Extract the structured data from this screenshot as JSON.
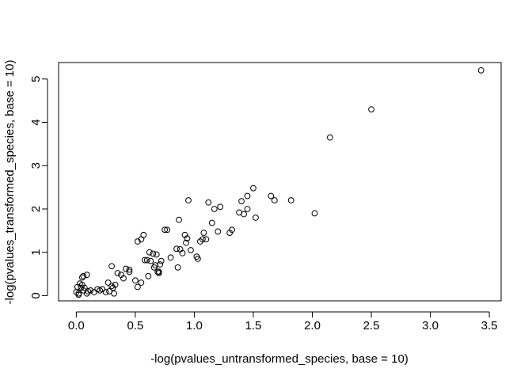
{
  "chart_data": {
    "type": "scatter",
    "title": "",
    "xlabel": "-log(pvalues_untransformed_species, base = 10)",
    "ylabel": "-log(pvalues_transformed_species, base = 10)",
    "xlim": [
      -0.15,
      3.6
    ],
    "ylim": [
      -0.12,
      5.38
    ],
    "xticks": [
      "0.0",
      "0.5",
      "1.0",
      "1.5",
      "2.0",
      "2.5",
      "3.0",
      "3.5"
    ],
    "yticks": [
      "0",
      "1",
      "2",
      "3",
      "4",
      "5"
    ],
    "grid": false,
    "legend": "none",
    "marker": "open-circle",
    "series": [
      {
        "x": [
          0.0,
          0.02,
          0.03,
          0.01,
          0.04,
          0.05,
          0.07,
          0.02,
          0.06,
          0.09,
          0.1,
          0.12,
          0.15,
          0.18,
          0.05,
          0.06,
          0.09,
          0.2,
          0.22,
          0.25,
          0.27,
          0.3,
          0.28,
          0.31,
          0.33,
          0.35,
          0.32,
          0.3,
          0.38,
          0.4,
          0.42,
          0.45,
          0.45,
          0.5,
          0.52,
          0.55,
          0.52,
          0.55,
          0.57,
          0.58,
          0.6,
          0.61,
          0.63,
          0.65,
          0.67,
          0.68,
          0.69,
          0.7,
          0.7,
          0.71,
          0.72,
          0.75,
          0.77,
          0.8,
          0.62,
          0.66,
          0.85,
          0.86,
          0.87,
          0.88,
          0.9,
          0.92,
          0.93,
          0.94,
          0.95,
          0.97,
          1.02,
          1.03,
          1.05,
          1.07,
          1.08,
          1.1,
          1.12,
          1.15,
          1.17,
          1.2,
          1.22,
          1.3,
          1.32,
          1.38,
          1.4,
          1.42,
          1.45,
          1.45,
          1.5,
          1.52,
          1.65,
          1.68,
          1.82,
          2.02,
          2.15,
          2.5,
          3.43
        ],
        "y": [
          0.08,
          0.05,
          0.28,
          0.2,
          0.18,
          0.25,
          0.18,
          0.02,
          0.45,
          0.48,
          0.1,
          0.12,
          0.08,
          0.15,
          0.42,
          0.12,
          0.05,
          0.12,
          0.15,
          0.08,
          0.3,
          0.22,
          0.1,
          0.18,
          0.25,
          0.52,
          0.05,
          0.68,
          0.48,
          0.4,
          0.62,
          0.6,
          0.55,
          0.35,
          0.2,
          0.3,
          1.25,
          1.3,
          1.4,
          0.82,
          0.82,
          0.45,
          0.8,
          0.97,
          0.7,
          0.95,
          0.55,
          0.52,
          0.55,
          0.72,
          0.8,
          1.52,
          1.52,
          0.88,
          1.0,
          0.65,
          1.08,
          0.65,
          1.75,
          1.07,
          0.98,
          1.4,
          1.22,
          1.32,
          2.2,
          1.05,
          0.9,
          0.85,
          1.25,
          1.3,
          1.45,
          1.3,
          2.15,
          1.68,
          2.0,
          1.48,
          2.05,
          1.45,
          1.52,
          1.92,
          2.18,
          1.88,
          2.3,
          2.0,
          2.48,
          1.8,
          2.3,
          2.2,
          2.2,
          1.9,
          3.65,
          4.3,
          5.2
        ]
      }
    ]
  }
}
